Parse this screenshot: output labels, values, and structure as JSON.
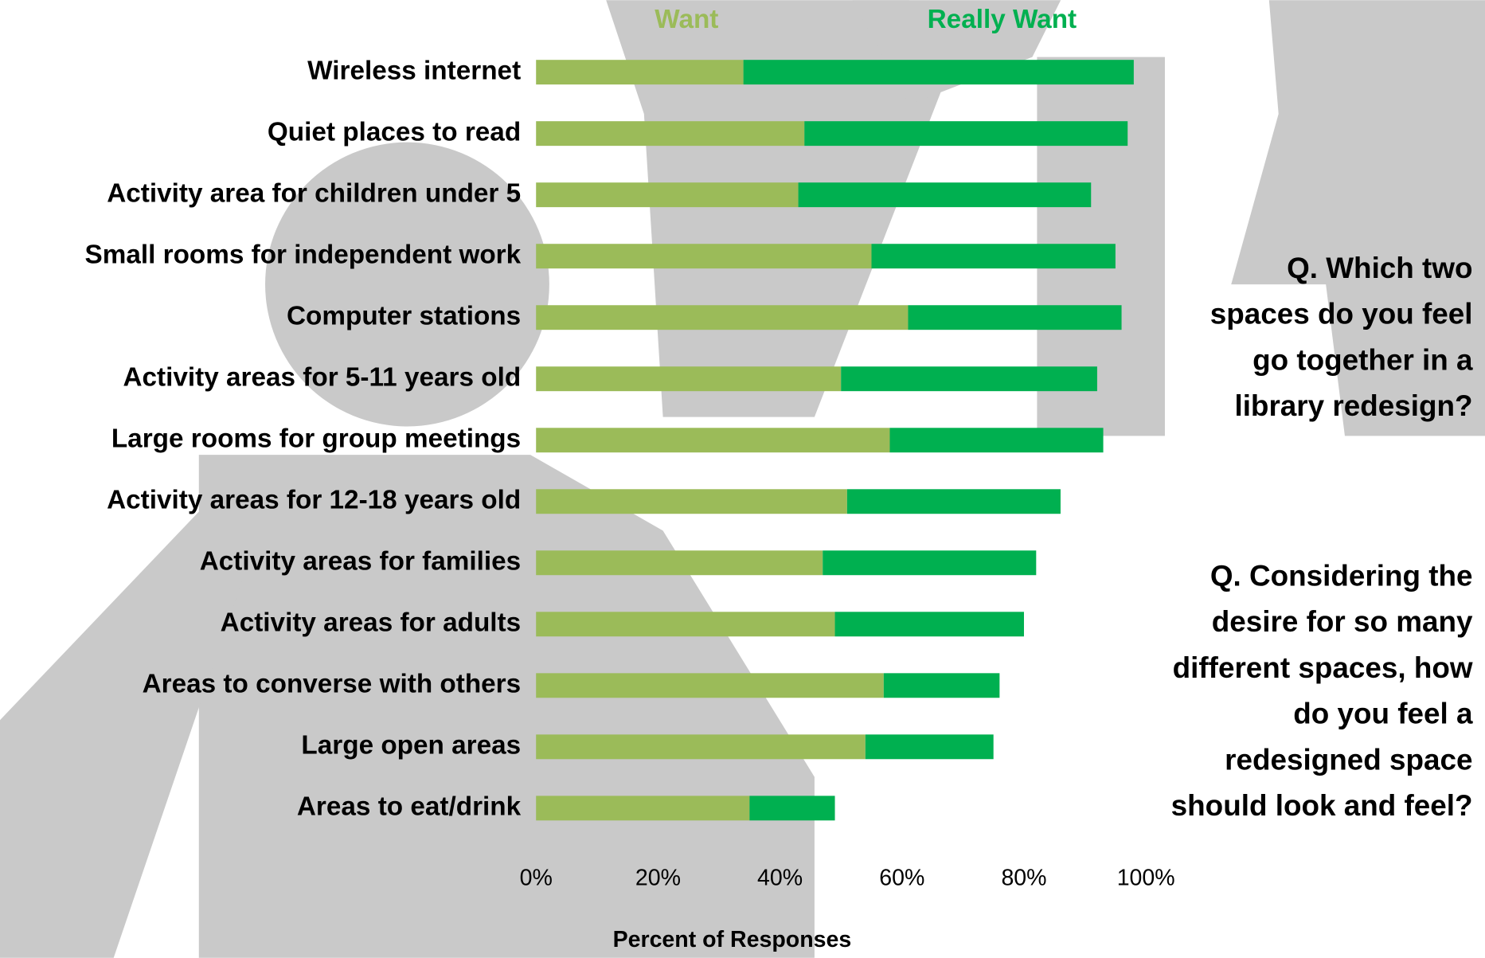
{
  "chart_data": {
    "type": "stacked-bar-horizontal",
    "categories": [
      "Wireless internet",
      "Quiet places to read",
      "Activity area for children under 5",
      "Small rooms for independent work",
      "Computer stations",
      "Activity areas for 5-11 years old",
      "Large rooms for group meetings",
      "Activity areas for 12-18 years old",
      "Activity areas for families",
      "Activity areas for adults",
      "Areas to converse with others",
      "Large open areas",
      "Areas to eat/drink"
    ],
    "series": [
      {
        "name": "Want",
        "color": "#9bbb59",
        "values": [
          34,
          44,
          43,
          55,
          61,
          50,
          58,
          51,
          47,
          49,
          57,
          54,
          35
        ]
      },
      {
        "name": "Really Want",
        "color": "#00b050",
        "values": [
          64,
          53,
          48,
          40,
          35,
          42,
          35,
          35,
          35,
          31,
          19,
          21,
          14
        ]
      }
    ],
    "xlim": [
      0,
      100
    ],
    "xticks": [
      {
        "value": 0,
        "label": "0%"
      },
      {
        "value": 20,
        "label": "20%"
      },
      {
        "value": 40,
        "label": "40%"
      },
      {
        "value": 60,
        "label": "60%"
      },
      {
        "value": 80,
        "label": "80%"
      },
      {
        "value": 100,
        "label": "100%"
      }
    ],
    "x_label": "Percent of Responses",
    "legend": "top",
    "annotations": [
      [
        "Q. Which two",
        "spaces do you feel",
        "go together in a",
        "library redesign?"
      ],
      [
        "Q. Considering the",
        "desire for so many",
        "different spaces, how",
        "do you feel a",
        "redesigned space",
        "should look and feel?"
      ]
    ]
  }
}
